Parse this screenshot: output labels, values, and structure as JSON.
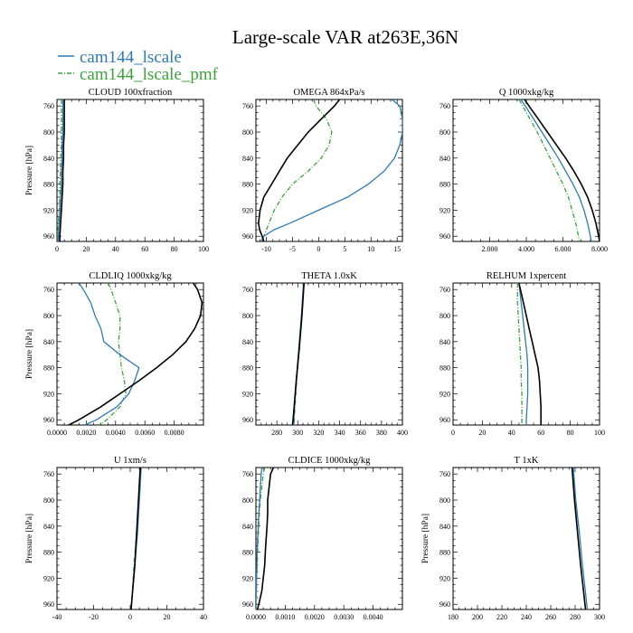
{
  "figure": {
    "title": "Large-scale VAR at263E,36N",
    "legend": [
      {
        "label": "cam144_lscale",
        "color": "#2d7bb6"
      },
      {
        "label": "cam144_lscale_pmf",
        "color": "#3aa33a"
      }
    ],
    "ref_color": "#000000"
  },
  "chart_data": [
    {
      "type": "line",
      "title": "CLOUD  100xfraction",
      "ylabel": "Pressure [hPa]",
      "xlim": [
        0,
        100
      ],
      "ylim": [
        968,
        750
      ],
      "xticks": [
        0,
        20,
        40,
        60,
        80,
        100
      ],
      "xtick_labels": [
        "0",
        "20",
        "40",
        "60",
        "80",
        "100"
      ],
      "yticks": [
        760,
        800,
        840,
        880,
        920,
        960
      ],
      "ytick_labels": [
        "760",
        "800",
        "840",
        "880",
        "920",
        "960"
      ],
      "pressure": [
        750,
        760,
        780,
        800,
        820,
        840,
        860,
        880,
        900,
        920,
        940,
        960,
        968
      ],
      "series": [
        {
          "role": "ref",
          "x": [
            5,
            5,
            5,
            5,
            4.5,
            4.5,
            4,
            4,
            3.5,
            3,
            2.5,
            2,
            2
          ]
        },
        {
          "role": "s1",
          "x": [
            4,
            4,
            4,
            4,
            3.5,
            3.5,
            3,
            3,
            2.5,
            2,
            1.5,
            1,
            1
          ]
        },
        {
          "role": "s2",
          "x": [
            3,
            3,
            3,
            3,
            3,
            2.5,
            2.5,
            2,
            2,
            1.5,
            1,
            0.5,
            0.5
          ]
        }
      ]
    },
    {
      "type": "line",
      "title": "OMEGA  864xPa/s",
      "ylabel": "",
      "xlim": [
        -12,
        16
      ],
      "ylim": [
        968,
        750
      ],
      "xticks": [
        -10,
        -5,
        0,
        5,
        10,
        15
      ],
      "xtick_labels": [
        "-10",
        "-5",
        "0",
        "5",
        "10",
        "15"
      ],
      "yticks": [
        760,
        800,
        840,
        880,
        920,
        960
      ],
      "ytick_labels": [
        "760",
        "800",
        "840",
        "880",
        "920",
        "960"
      ],
      "pressure": [
        750,
        760,
        780,
        800,
        820,
        840,
        860,
        880,
        900,
        920,
        940,
        950,
        960,
        968
      ],
      "series": [
        {
          "role": "ref",
          "x": [
            4,
            3,
            0.5,
            -2,
            -4,
            -6,
            -7.5,
            -9,
            -10.5,
            -11.2,
            -11.5,
            -11.3,
            -10.8,
            -10.5
          ]
        },
        {
          "role": "s1",
          "x": [
            14,
            15.5,
            16,
            16,
            15.5,
            14.5,
            12.5,
            9.5,
            5.5,
            0,
            -5.5,
            -8.5,
            -10.5,
            -11
          ]
        },
        {
          "role": "s2",
          "x": [
            -1,
            -0.5,
            1.5,
            2.5,
            2,
            0.5,
            -2,
            -5,
            -7,
            -8.5,
            -9.5,
            -10,
            -10.5,
            -10.8
          ]
        }
      ]
    },
    {
      "type": "line",
      "title": "Q  1000xkg/kg",
      "ylabel": "",
      "xlim": [
        0,
        8
      ],
      "ylim": [
        968,
        750
      ],
      "xticks": [
        2,
        4,
        6,
        8
      ],
      "xtick_labels": [
        "2.000",
        "4.000",
        "6.000",
        "8.000"
      ],
      "yticks": [
        760,
        800,
        840,
        880,
        920,
        960
      ],
      "ytick_labels": [
        "760",
        "800",
        "840",
        "880",
        "920",
        "960"
      ],
      "pressure": [
        750,
        760,
        780,
        800,
        820,
        840,
        860,
        880,
        900,
        920,
        940,
        960,
        968
      ],
      "series": [
        {
          "role": "ref",
          "x": [
            3.9,
            4.15,
            4.65,
            5.15,
            5.65,
            6.15,
            6.6,
            7.0,
            7.35,
            7.6,
            7.8,
            7.95,
            8.0
          ]
        },
        {
          "role": "s1",
          "x": [
            3.7,
            3.95,
            4.4,
            4.85,
            5.3,
            5.75,
            6.15,
            6.55,
            6.9,
            7.15,
            7.35,
            7.5,
            7.55
          ]
        },
        {
          "role": "s2",
          "x": [
            3.6,
            3.8,
            4.2,
            4.6,
            4.95,
            5.3,
            5.65,
            6.0,
            6.3,
            6.5,
            6.7,
            6.85,
            6.9
          ]
        }
      ]
    },
    {
      "type": "line",
      "title": "CLDLIQ  1000xkg/kg",
      "ylabel": "Pressure [hPa]",
      "xlim": [
        0,
        0.01
      ],
      "ylim": [
        968,
        750
      ],
      "xticks": [
        0,
        0.002,
        0.004,
        0.006,
        0.008
      ],
      "xtick_labels": [
        "0.0000",
        "0.0020",
        "0.0040",
        "0.0060",
        "0.0080"
      ],
      "yticks": [
        760,
        800,
        840,
        880,
        920,
        960
      ],
      "ytick_labels": [
        "760",
        "800",
        "840",
        "880",
        "920",
        "960"
      ],
      "pressure": [
        750,
        760,
        780,
        800,
        820,
        840,
        860,
        880,
        900,
        920,
        940,
        960,
        968
      ],
      "series": [
        {
          "role": "ref",
          "x": [
            0.0093,
            0.0096,
            0.0099,
            0.0098,
            0.0094,
            0.0088,
            0.0079,
            0.0068,
            0.0056,
            0.0043,
            0.003,
            0.0015,
            0.0008
          ]
        },
        {
          "role": "s1",
          "x": [
            0.0015,
            0.0018,
            0.0023,
            0.0026,
            0.003,
            0.0032,
            0.0043,
            0.0056,
            0.0053,
            0.0049,
            0.0041,
            0.0027,
            0.0019
          ]
        },
        {
          "role": "s2",
          "x": [
            0.0035,
            0.0037,
            0.004,
            0.0043,
            0.0043,
            0.0042,
            0.0043,
            0.0044,
            0.0046,
            0.0047,
            0.0043,
            0.0034,
            0.0029
          ]
        }
      ]
    },
    {
      "type": "line",
      "title": "THETA  1.0xK",
      "ylabel": "",
      "xlim": [
        260,
        400
      ],
      "ylim": [
        968,
        750
      ],
      "xticks": [
        280,
        300,
        320,
        340,
        360,
        380,
        400
      ],
      "xtick_labels": [
        "280",
        "300",
        "320",
        "340",
        "360",
        "380",
        "400"
      ],
      "yticks": [
        760,
        800,
        840,
        880,
        920,
        960
      ],
      "ytick_labels": [
        "760",
        "800",
        "840",
        "880",
        "920",
        "960"
      ],
      "pressure": [
        750,
        800,
        850,
        900,
        950,
        968
      ],
      "series": [
        {
          "role": "ref",
          "x": [
            306,
            304,
            301.5,
            298.5,
            296,
            295
          ]
        },
        {
          "role": "s1",
          "x": [
            305.5,
            303.5,
            301,
            298.5,
            296.5,
            296
          ]
        },
        {
          "role": "s2",
          "x": [
            306,
            304,
            301.5,
            299,
            297,
            296.5
          ]
        }
      ]
    },
    {
      "type": "line",
      "title": "RELHUM  1xpercent",
      "ylabel": "",
      "xlim": [
        0,
        100
      ],
      "ylim": [
        968,
        750
      ],
      "xticks": [
        0,
        20,
        40,
        60,
        80,
        100
      ],
      "xtick_labels": [
        "0",
        "20",
        "40",
        "60",
        "80",
        "100"
      ],
      "yticks": [
        760,
        800,
        840,
        880,
        920,
        960
      ],
      "ytick_labels": [
        "760",
        "800",
        "840",
        "880",
        "920",
        "960"
      ],
      "pressure": [
        750,
        760,
        780,
        800,
        820,
        840,
        860,
        880,
        900,
        920,
        940,
        960,
        968
      ],
      "series": [
        {
          "role": "ref",
          "x": [
            45,
            46,
            48,
            50,
            52,
            54,
            56,
            58,
            59,
            59.5,
            60,
            60,
            60
          ]
        },
        {
          "role": "s1",
          "x": [
            45,
            45.5,
            46.5,
            47.5,
            48.5,
            49.5,
            50.5,
            51,
            51,
            51,
            50.5,
            50,
            50
          ]
        },
        {
          "role": "s2",
          "x": [
            44,
            44,
            44,
            44.5,
            45,
            45.5,
            46,
            46.5,
            46.5,
            47,
            47,
            47,
            47
          ]
        }
      ]
    },
    {
      "type": "line",
      "title": "U  1xm/s",
      "ylabel": "Pressure [hPa]",
      "xlim": [
        -40,
        40
      ],
      "ylim": [
        968,
        750
      ],
      "xticks": [
        -40,
        -20,
        0,
        20,
        40
      ],
      "xtick_labels": [
        "-40",
        "-20",
        "0",
        "20",
        "40"
      ],
      "yticks": [
        760,
        800,
        840,
        880,
        920,
        960
      ],
      "ytick_labels": [
        "760",
        "800",
        "840",
        "880",
        "920",
        "960"
      ],
      "pressure": [
        750,
        800,
        850,
        900,
        950,
        968
      ],
      "series": [
        {
          "role": "ref",
          "x": [
            5.5,
            4.5,
            3.5,
            2.5,
            1,
            0.5
          ]
        },
        {
          "role": "s1",
          "x": [
            6,
            5,
            4,
            2.5,
            1,
            0.5
          ]
        },
        {
          "role": "s2",
          "x": [
            6,
            5,
            3.5,
            2,
            1,
            0.5
          ]
        }
      ]
    },
    {
      "type": "line",
      "title": "CLDICE  1000xkg/kg",
      "ylabel": "",
      "xlim": [
        0,
        0.005
      ],
      "ylim": [
        968,
        750
      ],
      "xticks": [
        0,
        0.001,
        0.002,
        0.003,
        0.004
      ],
      "xtick_labels": [
        "0.0000",
        "0.0010",
        "0.0020",
        "0.0030",
        "0.0040"
      ],
      "yticks": [
        760,
        800,
        840,
        880,
        920,
        960
      ],
      "ytick_labels": [
        "760",
        "800",
        "840",
        "880",
        "920",
        "960"
      ],
      "pressure": [
        750,
        760,
        780,
        800,
        820,
        840,
        860,
        880,
        900,
        920,
        940,
        960,
        968
      ],
      "series": [
        {
          "role": "ref",
          "x": [
            0.0006,
            0.0005,
            0.00045,
            0.0004,
            0.0004,
            0.00038,
            0.00035,
            0.00032,
            0.0003,
            0.00025,
            0.0002,
            0.0001,
            5e-05
          ]
        },
        {
          "role": "s1",
          "x": [
            0.0002,
            0.00018,
            0.00015,
            0.00013,
            0.0001,
            8e-05,
            6e-05,
            4e-05,
            3e-05,
            2e-05,
            1e-05,
            0.0,
            0.0
          ]
        },
        {
          "role": "s2",
          "x": [
            0.0003,
            0.00025,
            0.0002,
            0.00015,
            0.00012,
            0.0001,
            8e-05,
            6e-05,
            4e-05,
            3e-05,
            2e-05,
            1e-05,
            0.0
          ]
        }
      ]
    },
    {
      "type": "line",
      "title": "T  1xK",
      "ylabel": "Pressure [hPa]",
      "xlim": [
        180,
        300
      ],
      "ylim": [
        968,
        750
      ],
      "xticks": [
        180,
        200,
        220,
        240,
        260,
        280,
        300
      ],
      "xtick_labels": [
        "180",
        "200",
        "220",
        "240",
        "260",
        "280",
        "300"
      ],
      "yticks": [
        760,
        800,
        840,
        880,
        920,
        960
      ],
      "ytick_labels": [
        "760",
        "800",
        "840",
        "880",
        "920",
        "960"
      ],
      "pressure": [
        750,
        800,
        850,
        900,
        950,
        968
      ],
      "series": [
        {
          "role": "ref",
          "x": [
            277.5,
            279.5,
            282,
            284.5,
            287.5,
            288.5
          ]
        },
        {
          "role": "s1",
          "x": [
            278.5,
            280.5,
            283.5,
            286,
            289,
            290
          ]
        },
        {
          "role": "s2",
          "x": [
            277.5,
            279.5,
            282,
            284.5,
            287.5,
            288.5
          ]
        }
      ]
    }
  ]
}
